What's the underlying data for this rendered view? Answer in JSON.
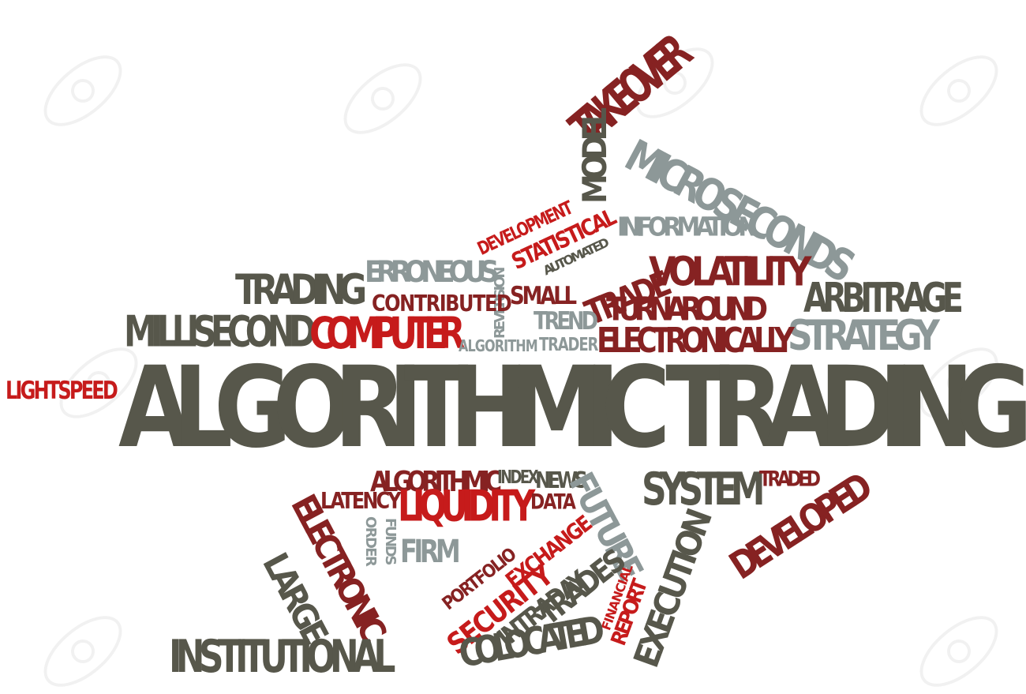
{
  "colors": {
    "olive": "#57574b",
    "red": "#c61b1b",
    "darkred": "#862222",
    "gray": "#8d9898"
  },
  "watermark_icon": "123rf-stock-watermark",
  "words": {
    "main": "ALGORITHMIC TRADING",
    "takeover": "TAKEOVER",
    "model": "MODEL",
    "microseconds": "MICROSECONDS",
    "development": "DEVELOPMENT",
    "statistical": "STATISTICAL",
    "information": "INFORMATION",
    "automated": "AUTOMATED",
    "erroneous": "ERRONEOUS",
    "reversion": "REVERSION",
    "trading": "TRADING",
    "contributed": "CONTRIBUTED",
    "small": "SMALL",
    "trade": "TRADE",
    "volatility": "VOLATILITY",
    "arbitrage": "ARBITRAGE",
    "turnaround": "TURNAROUND",
    "millisecond": "MILLISECOND",
    "computer": "COMPUTER",
    "trend": "TREND",
    "strategy": "STRATEGY",
    "algorithm": "ALGORITHM",
    "trader": "TRADER",
    "electronically": "ELECTRONICALLY",
    "lightspeed": "LIGHTSPEED",
    "algorithmic": "ALGORITHMIC",
    "index": "INDEX",
    "news": "NEWS",
    "future": "FUTURE",
    "system": "SYSTEM",
    "traded": "TRADED",
    "latency": "LATENCY",
    "liquidity": "LIQUIDITY",
    "data": "DATA",
    "developed": "DEVELOPED",
    "electronic": "ELECTRONIC",
    "funds": "FUNDS",
    "order": "ORDER",
    "firm": "FIRM",
    "exchange": "EXCHANGE",
    "portfolio": "PORTFOLIO",
    "large": "LARGE",
    "trades": "TRADES",
    "security": "SECURITY",
    "financial": "FINANCIAL",
    "report": "REPORT",
    "execution": "EXECUTION",
    "intraday": "INTRADAY",
    "institutional": "INSTITUTIONAL",
    "colocated": "COLOCATED"
  }
}
